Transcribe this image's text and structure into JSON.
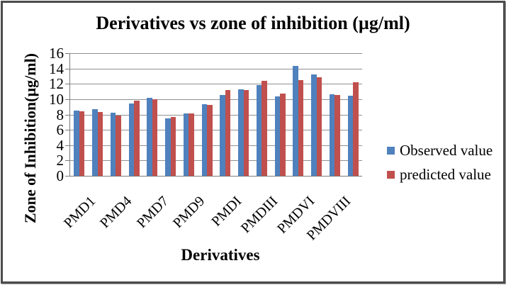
{
  "frame": {
    "background": "#ffffff",
    "border_color": "#4c4c4c"
  },
  "chart_data": {
    "type": "bar",
    "title": "Derivatives vs zone of inhibition (µg/ml)",
    "xlabel": "Derivatives",
    "ylabel": "Zone of Inhibition(µg/ml)",
    "ylim": [
      0,
      16
    ],
    "ytick_step": 2,
    "yticks": [
      0,
      2,
      4,
      6,
      8,
      10,
      12,
      14,
      16
    ],
    "grid": true,
    "legend_position": "right",
    "n_groups": 16,
    "x_tick_labels": [
      "PMD1",
      "PMD4",
      "PMD7",
      "PMD9",
      "PMDI",
      "PMDIII",
      "PMDVI",
      "PMDVIII"
    ],
    "x_tick_label_every": 2,
    "gridline_color": "#919191",
    "axis_color": "#7a7a7a",
    "series": [
      {
        "name": "Observed value",
        "color": "#4F81BD",
        "values": [
          8.5,
          8.7,
          8.25,
          9.4,
          10.2,
          7.5,
          8.15,
          9.35,
          10.55,
          11.25,
          11.8,
          10.35,
          14.3,
          13.2,
          10.65,
          10.45
        ]
      },
      {
        "name": "predicted value",
        "color": "#C0504D",
        "values": [
          8.4,
          8.3,
          7.85,
          9.85,
          9.95,
          7.7,
          8.15,
          9.25,
          11.2,
          11.15,
          12.4,
          10.7,
          12.5,
          12.9,
          10.55,
          12.2
        ]
      }
    ]
  }
}
